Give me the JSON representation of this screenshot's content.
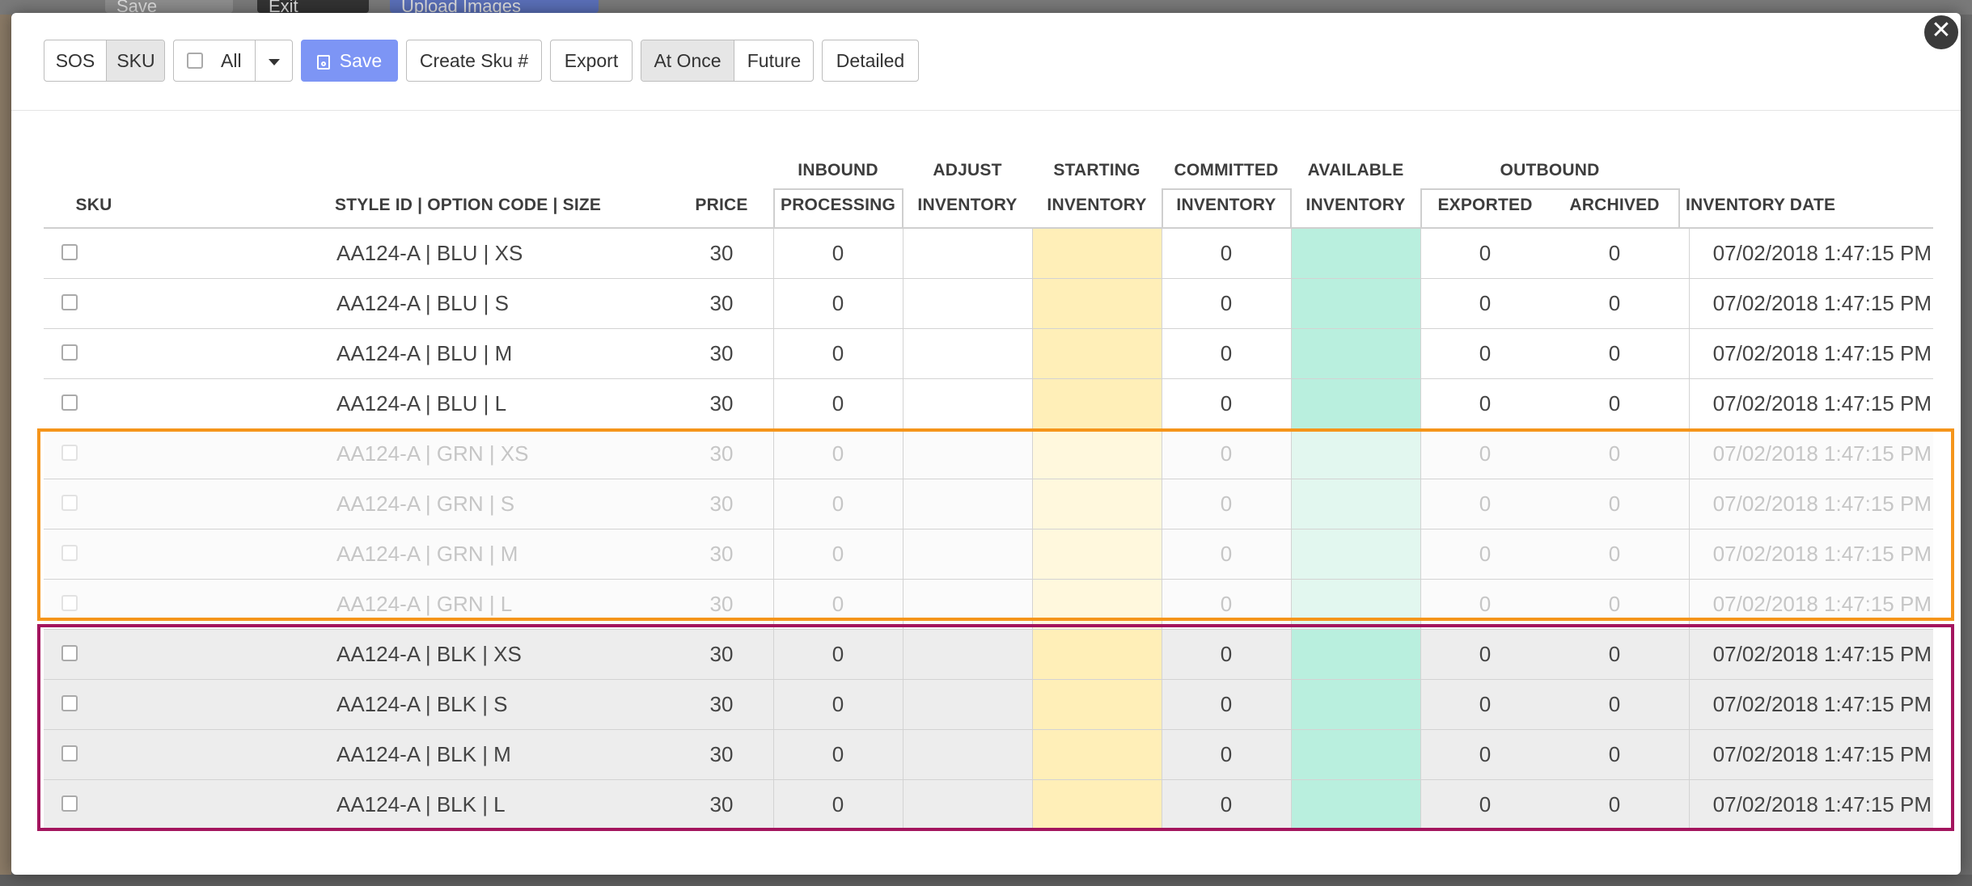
{
  "background": {
    "toolbar": {
      "save_label": "Save",
      "exit_label": "Exit",
      "upload_label": "Upload Images"
    }
  },
  "toolbar": {
    "view_toggle": [
      "SOS",
      "SKU"
    ],
    "active_view": "SKU",
    "select_all_label": "All",
    "save_label": "Save",
    "create_sku_label": "Create Sku #",
    "export_label": "Export",
    "timing_toggle": [
      "At Once",
      "Future"
    ],
    "active_timing": "At Once",
    "detailed_label": "Detailed"
  },
  "close_symbol": "✕",
  "table": {
    "headers": {
      "sku": "SKU",
      "style": "STYLE ID | OPTION CODE | SIZE",
      "price": "PRICE",
      "inbound_group": "INBOUND",
      "processing": "PROCESSING",
      "adjust_1": "ADJUST",
      "adjust_2": "INVENTORY",
      "starting_1": "STARTING",
      "starting_2": "INVENTORY",
      "committed_1": "COMMITTED",
      "committed_2": "INVENTORY",
      "available_1": "AVAILABLE",
      "available_2": "INVENTORY",
      "outbound_group": "OUTBOUND",
      "exported": "EXPORTED",
      "archived": "ARCHIVED",
      "inventory_date": "INVENTORY DATE"
    },
    "rows": [
      {
        "style": "AA124-A | BLU | XS",
        "price": "30",
        "processing": "0",
        "committed": "0",
        "exported": "0",
        "archived": "0",
        "date": "07/02/2018 1:47:15 PM"
      },
      {
        "style": "AA124-A | BLU | S",
        "price": "30",
        "processing": "0",
        "committed": "0",
        "exported": "0",
        "archived": "0",
        "date": "07/02/2018 1:47:15 PM"
      },
      {
        "style": "AA124-A | BLU | M",
        "price": "30",
        "processing": "0",
        "committed": "0",
        "exported": "0",
        "archived": "0",
        "date": "07/02/2018 1:47:15 PM"
      },
      {
        "style": "AA124-A | BLU | L",
        "price": "30",
        "processing": "0",
        "committed": "0",
        "exported": "0",
        "archived": "0",
        "date": "07/02/2018 1:47:15 PM"
      },
      {
        "style": "AA124-A | GRN | XS",
        "price": "30",
        "processing": "0",
        "committed": "0",
        "exported": "0",
        "archived": "0",
        "date": "07/02/2018 1:47:15 PM"
      },
      {
        "style": "AA124-A | GRN | S",
        "price": "30",
        "processing": "0",
        "committed": "0",
        "exported": "0",
        "archived": "0",
        "date": "07/02/2018 1:47:15 PM"
      },
      {
        "style": "AA124-A | GRN | M",
        "price": "30",
        "processing": "0",
        "committed": "0",
        "exported": "0",
        "archived": "0",
        "date": "07/02/2018 1:47:15 PM"
      },
      {
        "style": "AA124-A | GRN | L",
        "price": "30",
        "processing": "0",
        "committed": "0",
        "exported": "0",
        "archived": "0",
        "date": "07/02/2018 1:47:15 PM"
      },
      {
        "style": "AA124-A | BLK | XS",
        "price": "30",
        "processing": "0",
        "committed": "0",
        "exported": "0",
        "archived": "0",
        "date": "07/02/2018 1:47:15 PM"
      },
      {
        "style": "AA124-A | BLK | S",
        "price": "30",
        "processing": "0",
        "committed": "0",
        "exported": "0",
        "archived": "0",
        "date": "07/02/2018 1:47:15 PM"
      },
      {
        "style": "AA124-A | BLK | M",
        "price": "30",
        "processing": "0",
        "committed": "0",
        "exported": "0",
        "archived": "0",
        "date": "07/02/2018 1:47:15 PM"
      },
      {
        "style": "AA124-A | BLK | L",
        "price": "30",
        "processing": "0",
        "committed": "0",
        "exported": "0",
        "archived": "0",
        "date": "07/02/2018 1:47:15 PM"
      }
    ]
  },
  "colors": {
    "primary_button": "#7d95f5",
    "starting_inventory": "#ffefb8",
    "available_inventory": "#b9efde",
    "highlight_orange": "#f5951b",
    "highlight_magenta": "#a3155e"
  }
}
